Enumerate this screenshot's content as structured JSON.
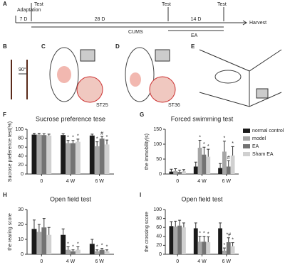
{
  "figure": {
    "panels": [
      "A",
      "B",
      "C",
      "D",
      "E"
    ],
    "timeline": {
      "adaptation": "Adaptation",
      "adaptation_days": "7 D",
      "test": "Test",
      "cums_days": "28 D",
      "ea_days": "14 D",
      "cums": "CUMS",
      "ea": "EA",
      "harvest": "Harvest"
    },
    "angle": "90°",
    "point_c": "ST25",
    "point_d": "ST36"
  },
  "chart_data": [
    {
      "type": "bar",
      "panel": "F",
      "title": "Sucrose preference tese",
      "y_label": "Sucrose preference test(%)",
      "categories": [
        "0",
        "4 W",
        "6 W"
      ],
      "ylim": [
        0,
        100
      ],
      "yticks": [
        0,
        20,
        40,
        60,
        80,
        100
      ],
      "series": [
        {
          "color": "#1a1a1a",
          "values": [
            88,
            87,
            86
          ],
          "errors": [
            3,
            3,
            3
          ],
          "markers": [
            null,
            null,
            null
          ]
        },
        {
          "color": "#a6a6a6",
          "values": [
            88,
            69,
            62
          ],
          "errors": [
            3,
            6,
            10
          ],
          "markers": [
            null,
            "*",
            "*"
          ]
        },
        {
          "color": "#737373",
          "values": [
            87,
            69,
            79
          ],
          "errors": [
            3,
            6,
            5
          ],
          "markers": [
            null,
            "*",
            "#"
          ]
        },
        {
          "color": "#d0d0d0",
          "values": [
            86,
            72,
            66
          ],
          "errors": [
            3,
            6,
            10
          ],
          "markers": [
            null,
            "*",
            "*"
          ]
        }
      ]
    },
    {
      "type": "bar",
      "panel": "G",
      "title": "Forced swimming test",
      "y_label": "the immobility(s)",
      "categories": [
        "0",
        "4 W",
        "6 W"
      ],
      "ylim": [
        0,
        150
      ],
      "yticks": [
        0,
        50,
        100,
        150
      ],
      "legend": true,
      "series": [
        {
          "name": "normal control",
          "color": "#1a1a1a",
          "values": [
            8,
            25,
            20
          ],
          "errors": [
            8,
            15,
            15
          ],
          "markers": [
            null,
            null,
            null
          ]
        },
        {
          "name": "model",
          "color": "#a6a6a6",
          "values": [
            10,
            88,
            75
          ],
          "errors": [
            8,
            25,
            35
          ],
          "markers": [
            null,
            "*",
            "*"
          ]
        },
        {
          "name": "EA",
          "color": "#737373",
          "values": [
            7,
            65,
            25
          ],
          "errors": [
            6,
            25,
            20
          ],
          "markers": [
            null,
            "*",
            "#"
          ]
        },
        {
          "name": "Sham EA",
          "color": "#d0d0d0",
          "values": [
            9,
            58,
            62
          ],
          "errors": [
            6,
            25,
            30
          ],
          "markers": [
            null,
            "*",
            "*"
          ]
        }
      ]
    },
    {
      "type": "bar",
      "panel": "H",
      "title": "Open field test",
      "y_label": "the rearing score",
      "categories": [
        "0",
        "4 W",
        "6 W"
      ],
      "ylim": [
        0,
        30
      ],
      "yticks": [
        0,
        10,
        20,
        30
      ],
      "series": [
        {
          "color": "#1a1a1a",
          "values": [
            17,
            13,
            7
          ],
          "errors": [
            6,
            4,
            3
          ],
          "markers": [
            null,
            null,
            null
          ]
        },
        {
          "color": "#a6a6a6",
          "values": [
            15,
            3,
            2
          ],
          "errors": [
            5,
            2,
            1
          ],
          "markers": [
            null,
            "*",
            "*"
          ]
        },
        {
          "color": "#737373",
          "values": [
            18,
            2,
            3
          ],
          "errors": [
            6,
            1,
            1
          ],
          "markers": [
            null,
            "*",
            "*"
          ]
        },
        {
          "color": "#d0d0d0",
          "values": [
            13,
            3,
            2
          ],
          "errors": [
            5,
            2,
            1
          ],
          "markers": [
            null,
            "*",
            "*"
          ]
        }
      ]
    },
    {
      "type": "bar",
      "panel": "I",
      "title": "Open field test",
      "y_label": "the crossing score",
      "categories": [
        "0",
        "4 W",
        "6 W"
      ],
      "ylim": [
        0,
        100
      ],
      "yticks": [
        0,
        20,
        40,
        60,
        80,
        100
      ],
      "series": [
        {
          "color": "#1a1a1a",
          "values": [
            63,
            58,
            58
          ],
          "errors": [
            10,
            12,
            12
          ],
          "markers": [
            null,
            null,
            null
          ]
        },
        {
          "color": "#a6a6a6",
          "values": [
            62,
            28,
            8
          ],
          "errors": [
            12,
            12,
            6
          ],
          "markers": [
            null,
            "*",
            "*"
          ]
        },
        {
          "color": "#737373",
          "values": [
            64,
            28,
            27
          ],
          "errors": [
            12,
            12,
            10
          ],
          "markers": [
            null,
            "*",
            "*#"
          ]
        },
        {
          "color": "#d0d0d0",
          "values": [
            60,
            27,
            18
          ],
          "errors": [
            10,
            12,
            8
          ],
          "markers": [
            null,
            "*",
            "*"
          ]
        }
      ]
    }
  ]
}
